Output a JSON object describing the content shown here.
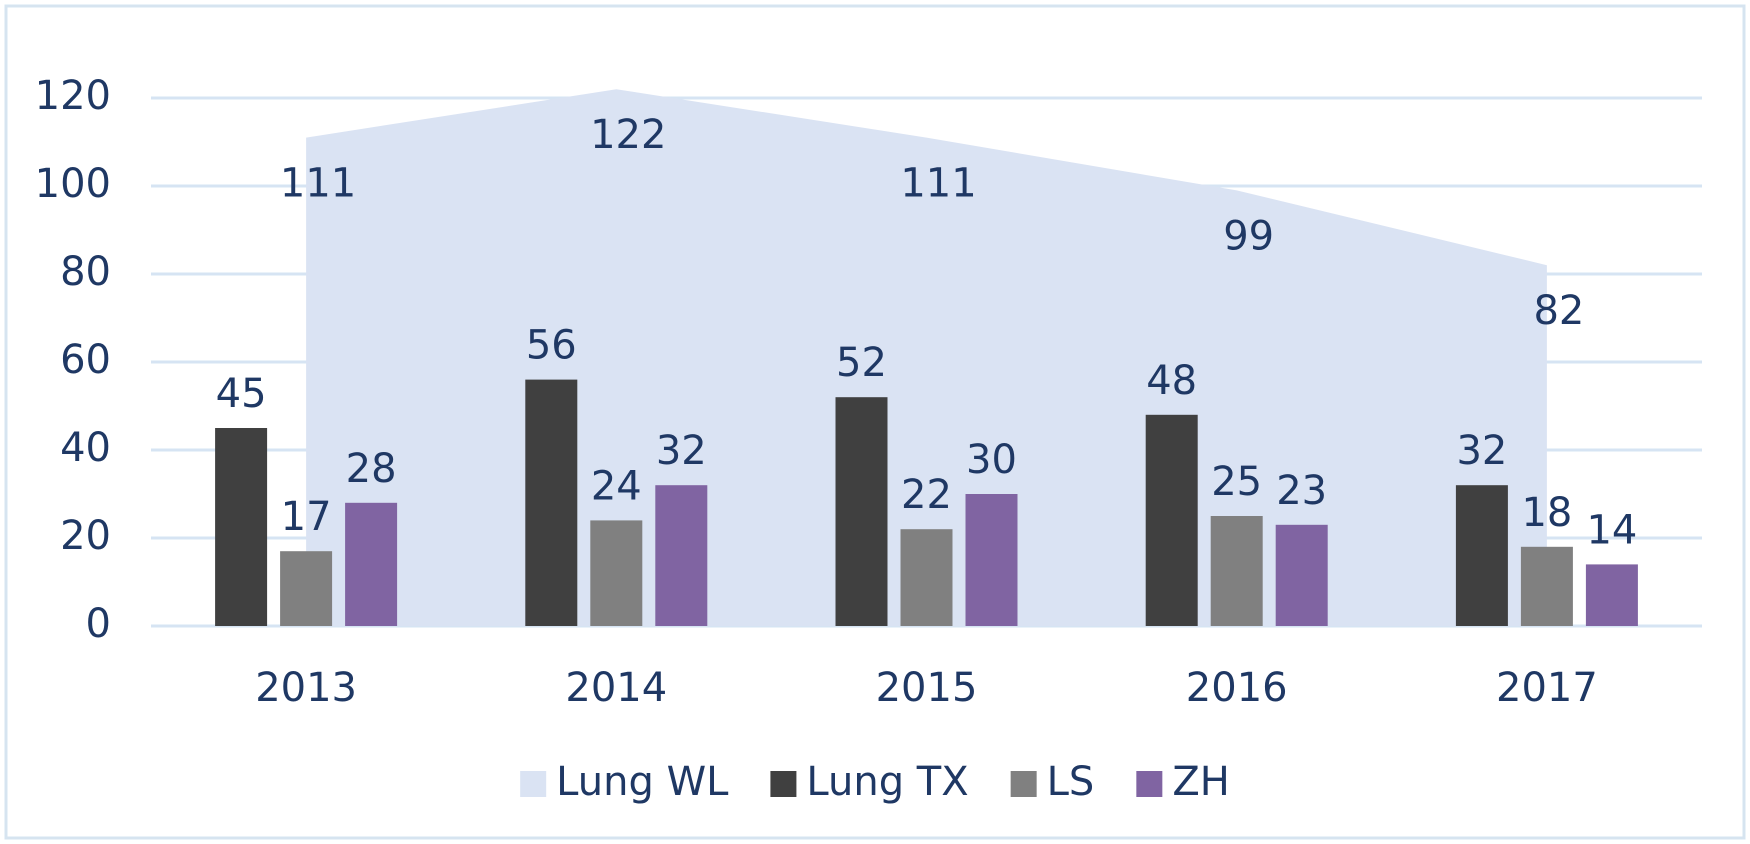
{
  "chart_data": {
    "type": "bar",
    "categories": [
      "2013",
      "2014",
      "2015",
      "2016",
      "2017"
    ],
    "series": [
      {
        "name": "Lung WL",
        "type": "area",
        "color": "#dae3f3",
        "values": [
          111,
          122,
          111,
          99,
          82
        ]
      },
      {
        "name": "Lung TX",
        "type": "bar",
        "color": "#404040",
        "values": [
          45,
          56,
          52,
          48,
          32
        ]
      },
      {
        "name": "LS",
        "type": "bar",
        "color": "#808080",
        "values": [
          17,
          24,
          22,
          25,
          18
        ]
      },
      {
        "name": "ZH",
        "type": "bar",
        "color": "#8064a2",
        "values": [
          28,
          32,
          30,
          23,
          14
        ]
      }
    ],
    "ylim": [
      0,
      120
    ],
    "yticks": [
      0,
      20,
      40,
      60,
      80,
      100,
      120
    ],
    "grid": true,
    "legend": "bottom",
    "data_labels": true
  }
}
